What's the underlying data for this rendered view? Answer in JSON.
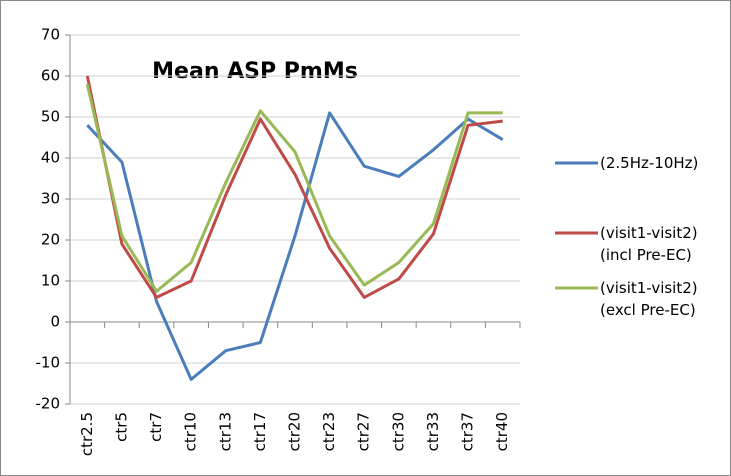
{
  "chart_data": {
    "type": "line",
    "title": "Mean ASP PmMs",
    "categories": [
      "ctr2.5",
      "ctr5",
      "ctr7",
      "ctr10",
      "ctr13",
      "ctr17",
      "ctr20",
      "ctr23",
      "ctr27",
      "ctr30",
      "ctr33",
      "ctr37",
      "ctr40"
    ],
    "series": [
      {
        "name": "(2.5Hz-10Hz)",
        "color": "#4a7ebb",
        "values": [
          48,
          39,
          5,
          -14,
          -7,
          -5,
          21,
          51,
          38,
          35.5,
          42,
          49.5,
          44.5
        ]
      },
      {
        "name": "(visit1-visit2) (incl Pre-EC)",
        "color": "#be4b48",
        "values": [
          60,
          19,
          6,
          10,
          31,
          49.5,
          36,
          18,
          6,
          10.5,
          21.5,
          48,
          49
        ]
      },
      {
        "name": "(visit1-visit2) (excl Pre-EC)",
        "color": "#98b954",
        "values": [
          58,
          21,
          7.5,
          14.5,
          34,
          51.5,
          41.5,
          21,
          9,
          14.5,
          24,
          51,
          51
        ]
      }
    ],
    "ylim": [
      -20,
      70
    ],
    "yticks": [
      -20,
      -10,
      0,
      10,
      20,
      30,
      40,
      50,
      60,
      70
    ],
    "grid": true
  }
}
